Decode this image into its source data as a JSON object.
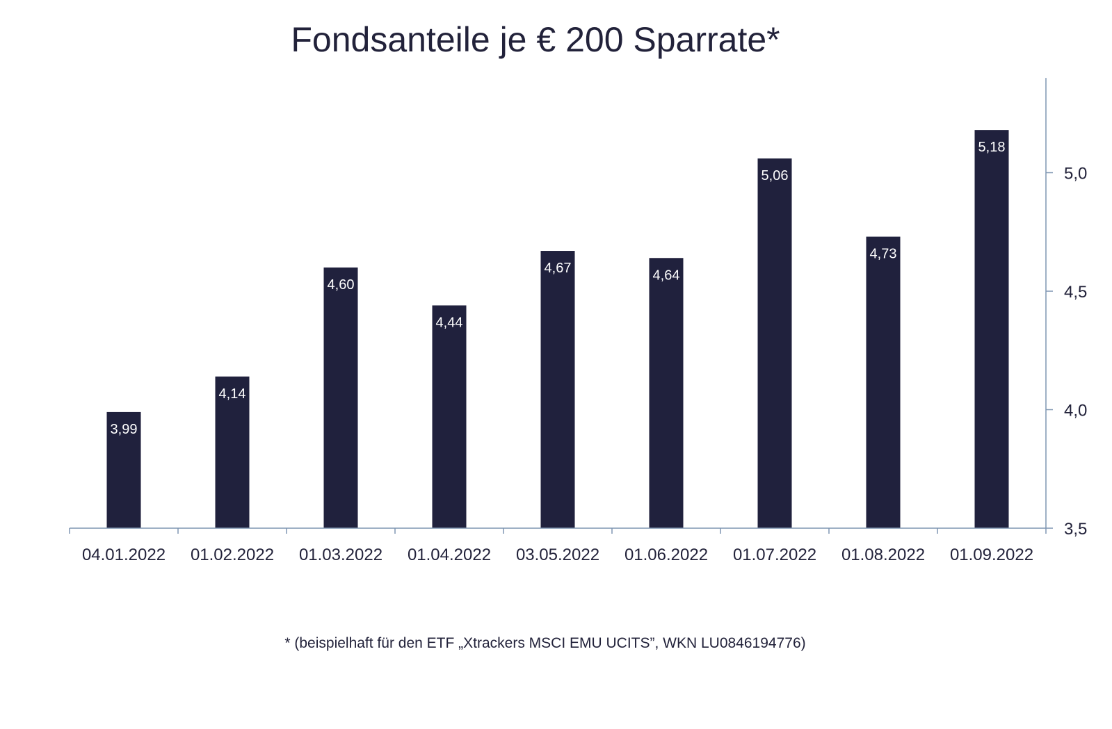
{
  "chart_data": {
    "type": "bar",
    "title": "Fondsanteile je € 200 Sparrate*",
    "footnote": "* (beispielhaft für den ETF „Xtrackers MSCI EMU UCITS”, WKN LU0846194776)",
    "categories": [
      "04.01.2022",
      "01.02.2022",
      "01.03.2022",
      "01.04.2022",
      "03.05.2022",
      "01.06.2022",
      "01.07.2022",
      "01.08.2022",
      "01.09.2022"
    ],
    "values": [
      3.99,
      4.14,
      4.6,
      4.44,
      4.67,
      4.64,
      5.06,
      4.73,
      5.18
    ],
    "data_labels": [
      "3,99",
      "4,14",
      "4,60",
      "4,44",
      "4,67",
      "4,64",
      "5,06",
      "4,73",
      "5,18"
    ],
    "ylim": [
      3.5,
      5.4
    ],
    "yticks": [
      3.5,
      4.0,
      4.5,
      5.0
    ],
    "ytick_labels": [
      "3,5",
      "4,0",
      "4,5",
      "5,0"
    ],
    "y_axis_position": "right",
    "grid": false,
    "colors": {
      "bar": "#20213d",
      "axis": "#7f96b2",
      "text": "#22223a",
      "label": "#ffffff"
    }
  }
}
